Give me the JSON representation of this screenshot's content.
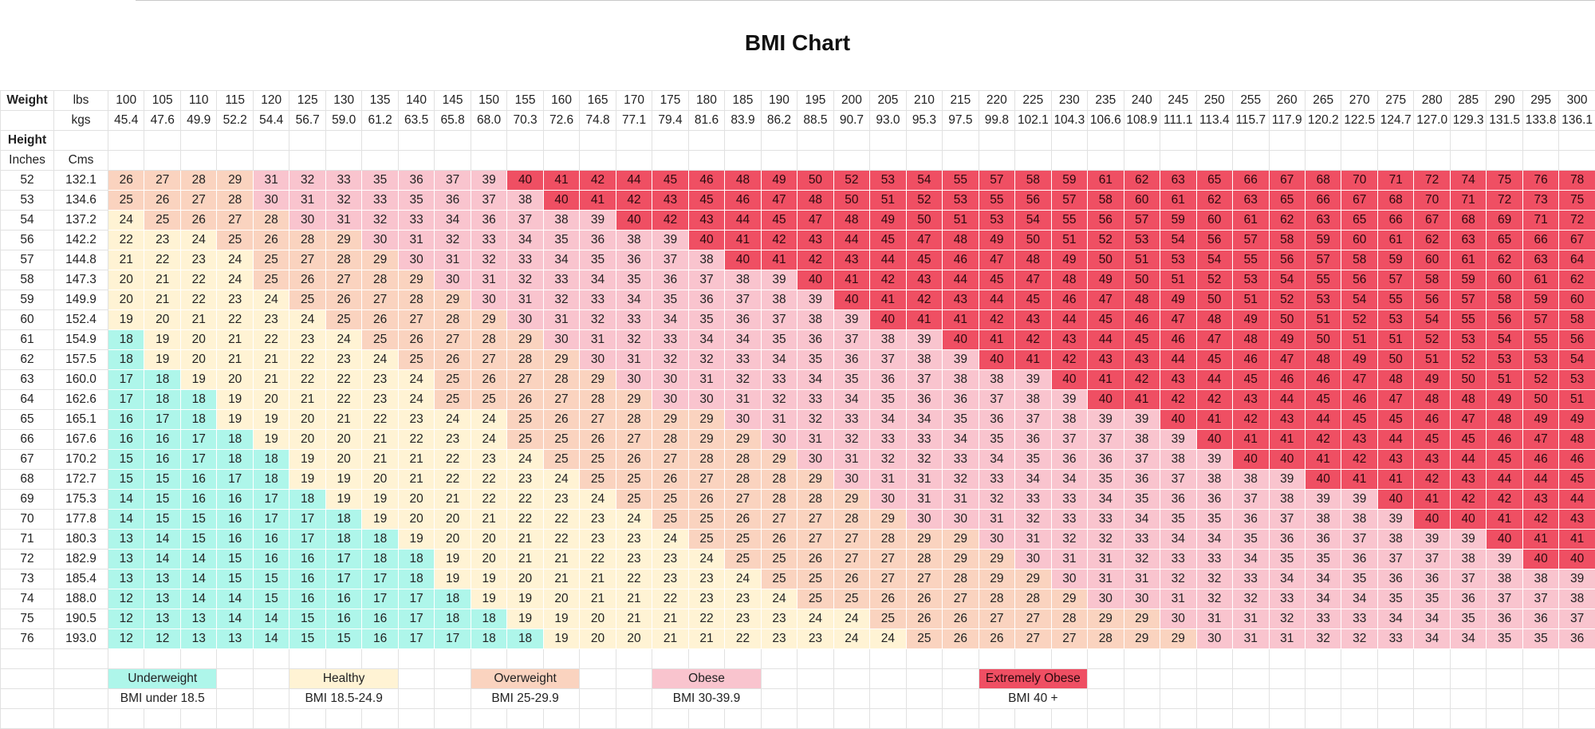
{
  "title": "BMI Chart",
  "header": {
    "weight_label": "Weight",
    "lbs_label": "lbs",
    "kgs_label": "kgs",
    "height_label": "Height",
    "inches_label": "Inches",
    "cms_label": "Cms"
  },
  "lbs": [
    "100",
    "105",
    "110",
    "115",
    "120",
    "125",
    "130",
    "135",
    "140",
    "145",
    "150",
    "155",
    "160",
    "165",
    "170",
    "175",
    "180",
    "185",
    "190",
    "195",
    "200",
    "205",
    "210",
    "215",
    "220",
    "225",
    "230",
    "235",
    "240",
    "245",
    "250",
    "255",
    "260",
    "265",
    "270",
    "275",
    "280",
    "285",
    "290",
    "295",
    "300"
  ],
  "kgs": [
    "45.4",
    "47.6",
    "49.9",
    "52.2",
    "54.4",
    "56.7",
    "59.0",
    "61.2",
    "63.5",
    "65.8",
    "68.0",
    "70.3",
    "72.6",
    "74.8",
    "77.1",
    "79.4",
    "81.6",
    "83.9",
    "86.2",
    "88.5",
    "90.7",
    "93.0",
    "95.3",
    "97.5",
    "99.8",
    "102.1",
    "104.3",
    "106.6",
    "108.9",
    "111.1",
    "113.4",
    "115.7",
    "117.9",
    "120.2",
    "122.5",
    "124.7",
    "127.0",
    "129.3",
    "131.5",
    "133.8",
    "136.1"
  ],
  "rows": [
    {
      "inches": "52",
      "cms": "132.1",
      "bmi": [
        26,
        27,
        28,
        29,
        31,
        32,
        33,
        35,
        36,
        37,
        39,
        40,
        41,
        42,
        44,
        45,
        46,
        48,
        49,
        50,
        52,
        53,
        54,
        55,
        57,
        58,
        59,
        61,
        62,
        63,
        65,
        66,
        67,
        68,
        70,
        71,
        72,
        74,
        75,
        76,
        78
      ]
    },
    {
      "inches": "53",
      "cms": "134.6",
      "bmi": [
        25,
        26,
        27,
        28,
        30,
        31,
        32,
        33,
        35,
        36,
        37,
        38,
        40,
        41,
        42,
        43,
        45,
        46,
        47,
        48,
        50,
        51,
        52,
        53,
        55,
        56,
        57,
        58,
        60,
        61,
        62,
        63,
        65,
        66,
        67,
        68,
        70,
        71,
        72,
        73,
        75
      ]
    },
    {
      "inches": "54",
      "cms": "137.2",
      "bmi": [
        24,
        25,
        26,
        27,
        28,
        30,
        31,
        32,
        33,
        34,
        36,
        37,
        38,
        39,
        40,
        42,
        43,
        44,
        45,
        47,
        48,
        49,
        50,
        51,
        53,
        54,
        55,
        56,
        57,
        59,
        60,
        61,
        62,
        63,
        65,
        66,
        67,
        68,
        69,
        71,
        72
      ]
    },
    {
      "inches": "56",
      "cms": "142.2",
      "bmi": [
        22,
        23,
        24,
        25,
        26,
        28,
        29,
        30,
        31,
        32,
        33,
        34,
        35,
        36,
        38,
        39,
        40,
        41,
        42,
        43,
        44,
        45,
        47,
        48,
        49,
        50,
        51,
        52,
        53,
        54,
        56,
        57,
        58,
        59,
        60,
        61,
        62,
        63,
        65,
        66,
        67
      ]
    },
    {
      "inches": "57",
      "cms": "144.8",
      "bmi": [
        21,
        22,
        23,
        24,
        25,
        27,
        28,
        29,
        30,
        31,
        32,
        33,
        34,
        35,
        36,
        37,
        38,
        40,
        41,
        42,
        43,
        44,
        45,
        46,
        47,
        48,
        49,
        50,
        51,
        53,
        54,
        55,
        56,
        57,
        58,
        59,
        60,
        61,
        62,
        63,
        64
      ]
    },
    {
      "inches": "58",
      "cms": "147.3",
      "bmi": [
        20,
        21,
        22,
        24,
        25,
        26,
        27,
        28,
        29,
        30,
        31,
        32,
        33,
        34,
        35,
        36,
        37,
        38,
        39,
        40,
        41,
        42,
        43,
        44,
        45,
        47,
        48,
        49,
        50,
        51,
        52,
        53,
        54,
        55,
        56,
        57,
        58,
        59,
        60,
        61,
        62
      ]
    },
    {
      "inches": "59",
      "cms": "149.9",
      "bmi": [
        20,
        21,
        22,
        23,
        24,
        25,
        26,
        27,
        28,
        29,
        30,
        31,
        32,
        33,
        34,
        35,
        36,
        37,
        38,
        39,
        40,
        41,
        42,
        43,
        44,
        45,
        46,
        47,
        48,
        49,
        50,
        51,
        52,
        53,
        54,
        55,
        56,
        57,
        58,
        59,
        60
      ]
    },
    {
      "inches": "60",
      "cms": "152.4",
      "bmi": [
        19,
        20,
        21,
        22,
        23,
        24,
        25,
        26,
        27,
        28,
        29,
        30,
        31,
        32,
        33,
        34,
        35,
        36,
        37,
        38,
        39,
        40,
        41,
        41,
        42,
        43,
        44,
        45,
        46,
        47,
        48,
        49,
        50,
        51,
        52,
        53,
        54,
        55,
        56,
        57,
        58
      ]
    },
    {
      "inches": "61",
      "cms": "154.9",
      "bmi": [
        18,
        19,
        20,
        21,
        22,
        23,
        24,
        25,
        26,
        27,
        28,
        29,
        30,
        31,
        32,
        33,
        34,
        34,
        35,
        36,
        37,
        38,
        39,
        40,
        41,
        42,
        43,
        44,
        45,
        46,
        47,
        48,
        49,
        50,
        51,
        51,
        52,
        53,
        54,
        55,
        56
      ]
    },
    {
      "inches": "62",
      "cms": "157.5",
      "bmi": [
        18,
        19,
        20,
        21,
        21,
        22,
        23,
        24,
        25,
        26,
        27,
        28,
        29,
        30,
        31,
        32,
        32,
        33,
        34,
        35,
        36,
        37,
        38,
        39,
        40,
        41,
        42,
        43,
        43,
        44,
        45,
        46,
        47,
        48,
        49,
        50,
        51,
        52,
        53,
        53,
        54
      ]
    },
    {
      "inches": "63",
      "cms": "160.0",
      "bmi": [
        17,
        18,
        19,
        20,
        21,
        22,
        22,
        23,
        24,
        25,
        26,
        27,
        28,
        29,
        30,
        30,
        31,
        32,
        33,
        34,
        35,
        36,
        37,
        38,
        38,
        39,
        40,
        41,
        42,
        43,
        44,
        45,
        46,
        46,
        47,
        48,
        49,
        50,
        51,
        52,
        53
      ]
    },
    {
      "inches": "64",
      "cms": "162.6",
      "bmi": [
        17,
        18,
        18,
        19,
        20,
        21,
        22,
        23,
        24,
        25,
        25,
        26,
        27,
        28,
        29,
        30,
        30,
        31,
        32,
        33,
        34,
        35,
        36,
        36,
        37,
        38,
        39,
        40,
        41,
        42,
        42,
        43,
        44,
        45,
        46,
        47,
        48,
        48,
        49,
        50,
        51
      ]
    },
    {
      "inches": "65",
      "cms": "165.1",
      "bmi": [
        16,
        17,
        18,
        19,
        19,
        20,
        21,
        22,
        23,
        24,
        24,
        25,
        26,
        27,
        28,
        29,
        29,
        30,
        31,
        32,
        33,
        34,
        34,
        35,
        36,
        37,
        38,
        39,
        39,
        40,
        41,
        42,
        43,
        44,
        45,
        45,
        46,
        47,
        48,
        49,
        49
      ]
    },
    {
      "inches": "66",
      "cms": "167.6",
      "bmi": [
        16,
        16,
        17,
        18,
        19,
        20,
        20,
        21,
        22,
        23,
        24,
        25,
        25,
        26,
        27,
        28,
        29,
        29,
        30,
        31,
        32,
        33,
        33,
        34,
        35,
        36,
        37,
        37,
        38,
        39,
        40,
        41,
        41,
        42,
        43,
        44,
        45,
        45,
        46,
        47,
        48
      ]
    },
    {
      "inches": "67",
      "cms": "170.2",
      "bmi": [
        15,
        16,
        17,
        18,
        18,
        19,
        20,
        21,
        21,
        22,
        23,
        24,
        25,
        25,
        26,
        27,
        28,
        28,
        29,
        30,
        31,
        32,
        32,
        33,
        34,
        35,
        36,
        36,
        37,
        38,
        39,
        40,
        40,
        41,
        42,
        43,
        43,
        44,
        45,
        46,
        46
      ]
    },
    {
      "inches": "68",
      "cms": "172.7",
      "bmi": [
        15,
        15,
        16,
        17,
        18,
        19,
        19,
        20,
        21,
        22,
        22,
        23,
        24,
        25,
        25,
        26,
        27,
        28,
        28,
        29,
        30,
        31,
        31,
        32,
        33,
        34,
        34,
        35,
        36,
        37,
        38,
        38,
        39,
        40,
        41,
        41,
        42,
        43,
        44,
        44,
        45
      ]
    },
    {
      "inches": "69",
      "cms": "175.3",
      "bmi": [
        14,
        15,
        16,
        16,
        17,
        18,
        19,
        19,
        20,
        21,
        22,
        22,
        23,
        24,
        25,
        25,
        26,
        27,
        28,
        28,
        29,
        30,
        31,
        31,
        32,
        33,
        33,
        34,
        35,
        36,
        36,
        37,
        38,
        39,
        39,
        40,
        41,
        42,
        42,
        43,
        44
      ]
    },
    {
      "inches": "70",
      "cms": "177.8",
      "bmi": [
        14,
        15,
        15,
        16,
        17,
        17,
        18,
        19,
        20,
        20,
        21,
        22,
        22,
        23,
        24,
        25,
        25,
        26,
        27,
        27,
        28,
        29,
        30,
        30,
        31,
        32,
        33,
        33,
        34,
        35,
        35,
        36,
        37,
        38,
        38,
        39,
        40,
        40,
        41,
        42,
        43
      ]
    },
    {
      "inches": "71",
      "cms": "180.3",
      "bmi": [
        13,
        14,
        15,
        16,
        16,
        17,
        18,
        18,
        19,
        20,
        20,
        21,
        22,
        23,
        23,
        24,
        25,
        25,
        26,
        27,
        27,
        28,
        29,
        29,
        30,
        31,
        32,
        32,
        33,
        34,
        34,
        35,
        36,
        36,
        37,
        38,
        39,
        39,
        40,
        41,
        41
      ]
    },
    {
      "inches": "72",
      "cms": "182.9",
      "bmi": [
        13,
        14,
        14,
        15,
        16,
        16,
        17,
        18,
        18,
        19,
        20,
        21,
        21,
        22,
        23,
        23,
        24,
        25,
        25,
        26,
        27,
        27,
        28,
        29,
        29,
        30,
        31,
        31,
        32,
        33,
        33,
        34,
        35,
        35,
        36,
        37,
        37,
        38,
        39,
        40,
        40
      ]
    },
    {
      "inches": "73",
      "cms": "185.4",
      "bmi": [
        13,
        13,
        14,
        15,
        15,
        16,
        17,
        17,
        18,
        19,
        19,
        20,
        21,
        21,
        22,
        23,
        23,
        24,
        25,
        25,
        26,
        27,
        27,
        28,
        29,
        29,
        30,
        31,
        31,
        32,
        32,
        33,
        34,
        34,
        35,
        36,
        36,
        37,
        38,
        38,
        39
      ]
    },
    {
      "inches": "74",
      "cms": "188.0",
      "bmi": [
        12,
        13,
        14,
        14,
        15,
        16,
        16,
        17,
        17,
        18,
        19,
        19,
        20,
        21,
        21,
        22,
        23,
        23,
        24,
        25,
        25,
        26,
        26,
        27,
        28,
        28,
        29,
        30,
        30,
        31,
        32,
        32,
        33,
        34,
        34,
        35,
        35,
        36,
        37,
        37,
        38
      ]
    },
    {
      "inches": "75",
      "cms": "190.5",
      "bmi": [
        12,
        13,
        13,
        14,
        14,
        15,
        16,
        16,
        17,
        18,
        18,
        19,
        19,
        20,
        21,
        21,
        22,
        23,
        23,
        24,
        24,
        25,
        26,
        26,
        27,
        27,
        28,
        29,
        29,
        30,
        31,
        31,
        32,
        33,
        33,
        34,
        34,
        35,
        36,
        36,
        37
      ]
    },
    {
      "inches": "76",
      "cms": "193.0",
      "bmi": [
        12,
        12,
        13,
        13,
        14,
        15,
        15,
        16,
        17,
        17,
        18,
        18,
        19,
        20,
        20,
        21,
        21,
        22,
        23,
        23,
        24,
        24,
        25,
        26,
        26,
        27,
        27,
        28,
        29,
        29,
        30,
        31,
        31,
        32,
        32,
        33,
        34,
        34,
        35,
        35,
        36
      ]
    }
  ],
  "categories": [
    {
      "key": "under",
      "label": "Underweight",
      "range": "BMI under 18.5",
      "color": "#aef6ea"
    },
    {
      "key": "health",
      "label": "Healthy",
      "range": "BMI 18.5-24.9",
      "color": "#fff3d4"
    },
    {
      "key": "over",
      "label": "Overweight",
      "range": "BMI 25-29.9",
      "color": "#fad3bf"
    },
    {
      "key": "obese",
      "label": "Obese",
      "range": "BMI 30-39.9",
      "color": "#f9c4ce"
    },
    {
      "key": "ext",
      "label": "Extremely Obese",
      "range": "BMI 40 +",
      "color": "#ef4f63"
    }
  ]
}
